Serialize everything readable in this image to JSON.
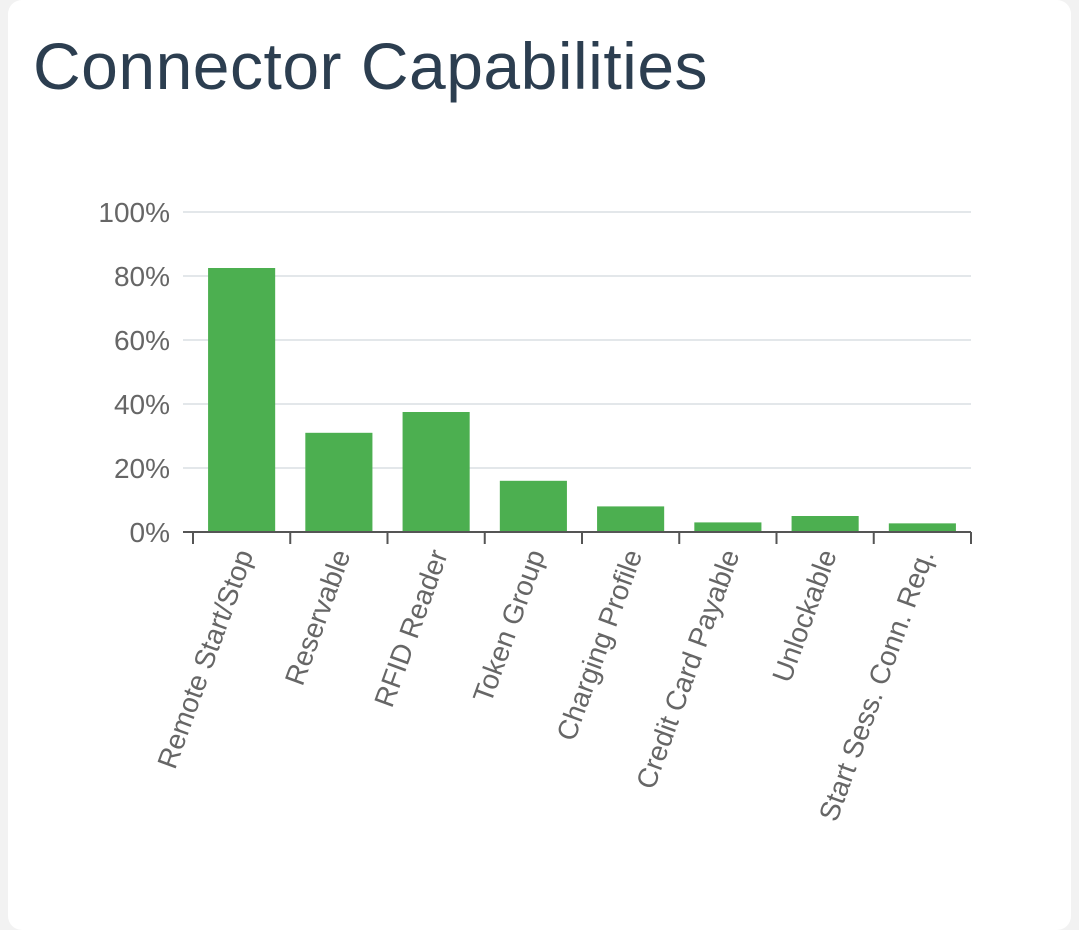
{
  "card": {
    "title": "Connector Capabilities"
  },
  "chart_data": {
    "type": "bar",
    "title": "Connector Capabilities",
    "xlabel": "",
    "ylabel": "",
    "ylim": [
      0,
      100
    ],
    "ytick_values": [
      0,
      20,
      40,
      60,
      80,
      100
    ],
    "ytick_labels": [
      "0%",
      "20%",
      "40%",
      "60%",
      "80%",
      "100%"
    ],
    "categories": [
      "Remote Start/Stop",
      "Reservable",
      "RFID Reader",
      "Token Group",
      "Charging Profile",
      "Credit Card Payable",
      "Unlockable",
      "Start Sess. Conn. Req."
    ],
    "values": [
      82.5,
      31,
      37.5,
      16,
      8,
      3,
      5,
      2.7
    ],
    "bar_color": "#4caf50",
    "grid": true,
    "legend": "none"
  }
}
